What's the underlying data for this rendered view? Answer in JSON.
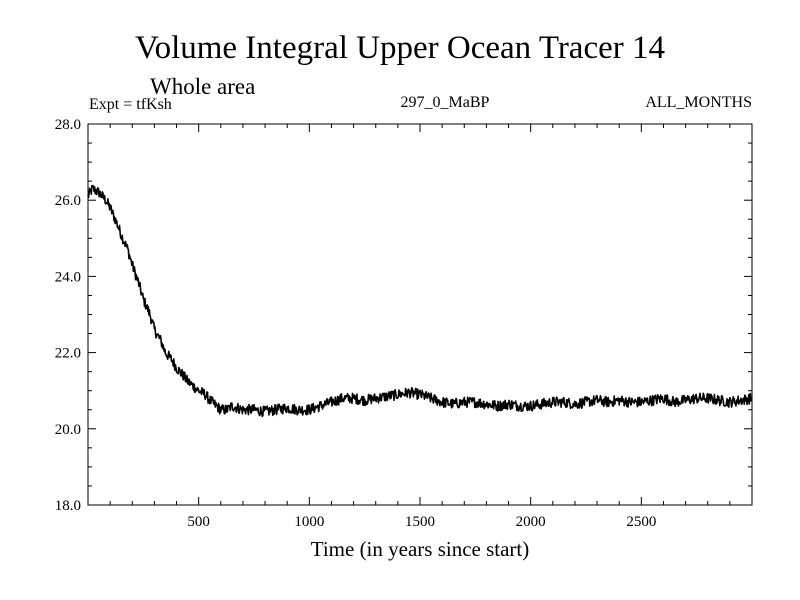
{
  "chart_data": {
    "type": "line",
    "title": "Volume Integral Upper Ocean Tracer 14",
    "subtitle": "Whole area",
    "experiment_label": "Expt = tfKsh",
    "period_label": "297_0_MaBP",
    "months_label": "ALL_MONTHS",
    "xlabel": "Time (in years since start)",
    "ylabel": "",
    "xlim": [
      0,
      3000
    ],
    "ylim": [
      18.0,
      28.0
    ],
    "x_ticks": [
      500,
      1000,
      1500,
      2000,
      2500
    ],
    "x_tick_labels": [
      "500",
      "1000",
      "1500",
      "2000",
      "2500"
    ],
    "y_ticks": [
      18.0,
      20.0,
      22.0,
      24.0,
      26.0,
      28.0
    ],
    "y_tick_labels": [
      "18.0",
      "20.0",
      "22.0",
      "24.0",
      "26.0",
      "28.0"
    ],
    "grid": false,
    "series": [
      {
        "name": "Tracer 14",
        "color": "#000000",
        "x": [
          0,
          20,
          50,
          80,
          100,
          130,
          150,
          180,
          200,
          230,
          250,
          280,
          300,
          330,
          350,
          380,
          400,
          430,
          450,
          480,
          500,
          530,
          550,
          580,
          600,
          630,
          650,
          700,
          750,
          800,
          850,
          900,
          950,
          1000,
          1050,
          1100,
          1150,
          1200,
          1250,
          1300,
          1350,
          1400,
          1450,
          1500,
          1550,
          1600,
          1650,
          1700,
          1750,
          1800,
          1850,
          1900,
          1950,
          2000,
          2050,
          2100,
          2150,
          2200,
          2250,
          2300,
          2350,
          2400,
          2450,
          2500,
          2550,
          2600,
          2650,
          2700,
          2750,
          2800,
          2850,
          2900,
          2950,
          3000
        ],
        "values": [
          26.1,
          26.3,
          26.2,
          26.0,
          25.8,
          25.4,
          25.1,
          24.7,
          24.3,
          23.8,
          23.4,
          23.0,
          22.6,
          22.3,
          22.0,
          21.8,
          21.6,
          21.4,
          21.25,
          21.1,
          21.0,
          20.9,
          20.75,
          20.6,
          20.5,
          20.5,
          20.6,
          20.5,
          20.5,
          20.45,
          20.5,
          20.55,
          20.5,
          20.5,
          20.6,
          20.7,
          20.8,
          20.8,
          20.75,
          20.8,
          20.85,
          20.9,
          20.95,
          20.9,
          20.8,
          20.7,
          20.65,
          20.7,
          20.7,
          20.65,
          20.6,
          20.65,
          20.6,
          20.6,
          20.65,
          20.7,
          20.7,
          20.65,
          20.7,
          20.75,
          20.7,
          20.75,
          20.7,
          20.7,
          20.75,
          20.8,
          20.7,
          20.75,
          20.8,
          20.8,
          20.75,
          20.7,
          20.75,
          20.8
        ]
      }
    ],
    "noise_amplitude": 0.14,
    "noise_step": 2.5
  }
}
